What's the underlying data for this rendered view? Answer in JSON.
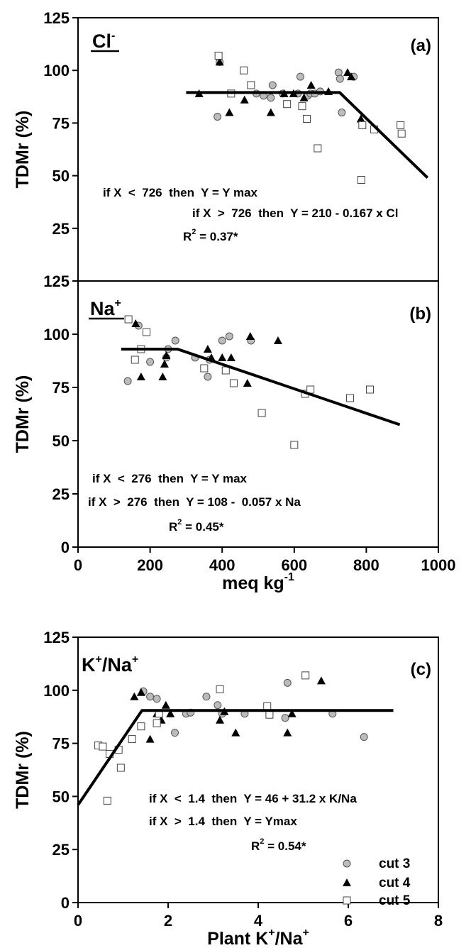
{
  "chart_data": [
    {
      "type": "scatter",
      "panel_letter": "(a)",
      "ion_label": "Cl",
      "ion_sup": "-",
      "ylabel": "TDMr (%)",
      "xlabel": "",
      "xlim": [
        0,
        1000
      ],
      "ylim": [
        0,
        125
      ],
      "y_ticks": [
        "125",
        "100",
        "75",
        "50",
        "25"
      ],
      "equations": [
        "if X  <  726  then  Y = Y max",
        "if X  >  726  then  Y = 210 - 0.167 x Cl"
      ],
      "r2_base": "R",
      "r2_sup": "2",
      "r2_rest": " = 0.37*",
      "fit_line": [
        [
          300,
          89.5
        ],
        [
          726,
          89.5
        ],
        [
          970,
          49
        ]
      ],
      "series": [
        {
          "key": "cut3",
          "points": [
            [
              393,
              104
            ],
            [
              387,
              78
            ],
            [
              495,
              89
            ],
            [
              515,
              88
            ],
            [
              535,
              87
            ],
            [
              540,
              93
            ],
            [
              568,
              89
            ],
            [
              610,
              89
            ],
            [
              617,
              97
            ],
            [
              637,
              88
            ],
            [
              645,
              89
            ],
            [
              657,
              89
            ],
            [
              672,
              90
            ],
            [
              723,
              99
            ],
            [
              727,
              96
            ],
            [
              732,
              80
            ],
            [
              765,
              97
            ]
          ]
        },
        {
          "key": "cut4",
          "points": [
            [
              393,
              104
            ],
            [
              336,
              89
            ],
            [
              420,
              80
            ],
            [
              462,
              86
            ],
            [
              535,
              80
            ],
            [
              572,
              89
            ],
            [
              598,
              89
            ],
            [
              627,
              87
            ],
            [
              647,
              93
            ],
            [
              695,
              90
            ],
            [
              748,
              99
            ],
            [
              758,
              97
            ],
            [
              785,
              77
            ]
          ]
        },
        {
          "key": "cut5",
          "points": [
            [
              390,
              107
            ],
            [
              425,
              89
            ],
            [
              460,
              100
            ],
            [
              480,
              93
            ],
            [
              580,
              84
            ],
            [
              622,
              83
            ],
            [
              635,
              77
            ],
            [
              665,
              63
            ],
            [
              786,
              48
            ],
            [
              789,
              74
            ],
            [
              822,
              72
            ],
            [
              895,
              74
            ],
            [
              898,
              70
            ]
          ]
        }
      ]
    },
    {
      "type": "scatter",
      "panel_letter": "(b)",
      "ion_label": "Na",
      "ion_sup": "+",
      "ylabel": "TDMr (%)",
      "xlabel": "meq kg",
      "xlabel_sup": "-1",
      "xlim": [
        0,
        1000
      ],
      "ylim": [
        0,
        125
      ],
      "y_ticks": [
        "125",
        "100",
        "75",
        "50",
        "25",
        "0"
      ],
      "x_ticks": [
        "0",
        "200",
        "400",
        "600",
        "800",
        "1000"
      ],
      "equations": [
        "if X  <  276  then  Y = Y max",
        "if X  >  276  then  Y = 108 -  0.057 x Na"
      ],
      "r2_base": "R",
      "r2_sup": "2",
      "r2_rest": " = 0.45*",
      "fit_line": [
        [
          120,
          93
        ],
        [
          276,
          93
        ],
        [
          893,
          57.5
        ]
      ],
      "series": [
        {
          "key": "cut3",
          "points": [
            [
              138,
              78
            ],
            [
              168,
              104
            ],
            [
              200,
              87
            ],
            [
              245,
              89
            ],
            [
              250,
              93
            ],
            [
              270,
              97
            ],
            [
              325,
              89
            ],
            [
              360,
              80
            ],
            [
              365,
              88
            ],
            [
              400,
              97
            ],
            [
              420,
              99
            ],
            [
              480,
              97
            ]
          ]
        },
        {
          "key": "cut4",
          "points": [
            [
              160,
              105
            ],
            [
              175,
              80
            ],
            [
              235,
              80
            ],
            [
              240,
              86
            ],
            [
              245,
              90
            ],
            [
              360,
              93
            ],
            [
              370,
              89
            ],
            [
              400,
              89
            ],
            [
              425,
              89
            ],
            [
              470,
              77
            ],
            [
              478,
              99
            ],
            [
              555,
              97
            ]
          ]
        },
        {
          "key": "cut5",
          "points": [
            [
              140,
              107
            ],
            [
              158,
              88
            ],
            [
              175,
              93
            ],
            [
              190,
              101
            ],
            [
              350,
              84
            ],
            [
              410,
              83
            ],
            [
              432,
              77
            ],
            [
              510,
              63
            ],
            [
              600,
              48
            ],
            [
              630,
              72
            ],
            [
              645,
              74
            ],
            [
              755,
              70
            ],
            [
              810,
              74
            ]
          ]
        }
      ]
    },
    {
      "type": "scatter",
      "panel_letter": "(c)",
      "ion_label": "K",
      "ion_sup": "+",
      "ion_label2": "/Na",
      "ion_sup2": "+",
      "ylabel": "TDMr (%)",
      "xlabel": "Plant K",
      "xlabel_sup": "+",
      "xlabel2": "/Na",
      "xlabel_sup2": "+",
      "xlim": [
        0,
        8
      ],
      "ylim": [
        0,
        125
      ],
      "y_ticks": [
        "125",
        "100",
        "75",
        "50",
        "25",
        "0"
      ],
      "x_ticks": [
        "0",
        "2",
        "4",
        "6",
        "8"
      ],
      "equations": [
        "if X  <  1.4  then  Y = 46 + 31.2 x K/Na",
        "if X  >  1.4  then  Y = Ymax"
      ],
      "r2_base": "R",
      "r2_sup": "2",
      "r2_rest": " = 0.54*",
      "fit_line": [
        [
          0,
          46
        ],
        [
          1.42,
          90.5
        ],
        [
          7,
          90.5
        ]
      ],
      "legend": [
        "cut 3",
        "cut 4",
        "cut 5"
      ],
      "series": [
        {
          "key": "cut3",
          "name": "cut 3",
          "points": [
            [
              1.45,
              99.5
            ],
            [
              1.6,
              97
            ],
            [
              1.75,
              96
            ],
            [
              2.15,
              80
            ],
            [
              2.4,
              89
            ],
            [
              2.5,
              89.5
            ],
            [
              2.85,
              97
            ],
            [
              3.1,
              93
            ],
            [
              3.2,
              89
            ],
            [
              3.7,
              89
            ],
            [
              4.25,
              89
            ],
            [
              4.6,
              87
            ],
            [
              4.65,
              103.5
            ],
            [
              5.65,
              89
            ],
            [
              6.35,
              78
            ]
          ]
        },
        {
          "key": "cut4",
          "name": "cut 4",
          "points": [
            [
              1.25,
              97
            ],
            [
              1.4,
              99
            ],
            [
              1.6,
              77
            ],
            [
              1.75,
              89
            ],
            [
              1.85,
              86
            ],
            [
              1.95,
              93
            ],
            [
              2.05,
              89
            ],
            [
              3.15,
              86
            ],
            [
              3.25,
              90
            ],
            [
              3.5,
              80
            ],
            [
              4.65,
              80
            ],
            [
              4.75,
              89
            ],
            [
              5.4,
              104.5
            ]
          ]
        },
        {
          "key": "cut5",
          "name": "cut 5",
          "points": [
            [
              0.45,
              74
            ],
            [
              0.55,
              73.5
            ],
            [
              0.65,
              48
            ],
            [
              0.7,
              70
            ],
            [
              0.9,
              72
            ],
            [
              0.95,
              63.5
            ],
            [
              1.2,
              77
            ],
            [
              1.4,
              83
            ],
            [
              1.75,
              84.5
            ],
            [
              1.8,
              89
            ],
            [
              3.15,
              100.5
            ],
            [
              4.2,
              92.5
            ],
            [
              4.25,
              88.5
            ],
            [
              5.05,
              107
            ]
          ]
        }
      ]
    }
  ]
}
